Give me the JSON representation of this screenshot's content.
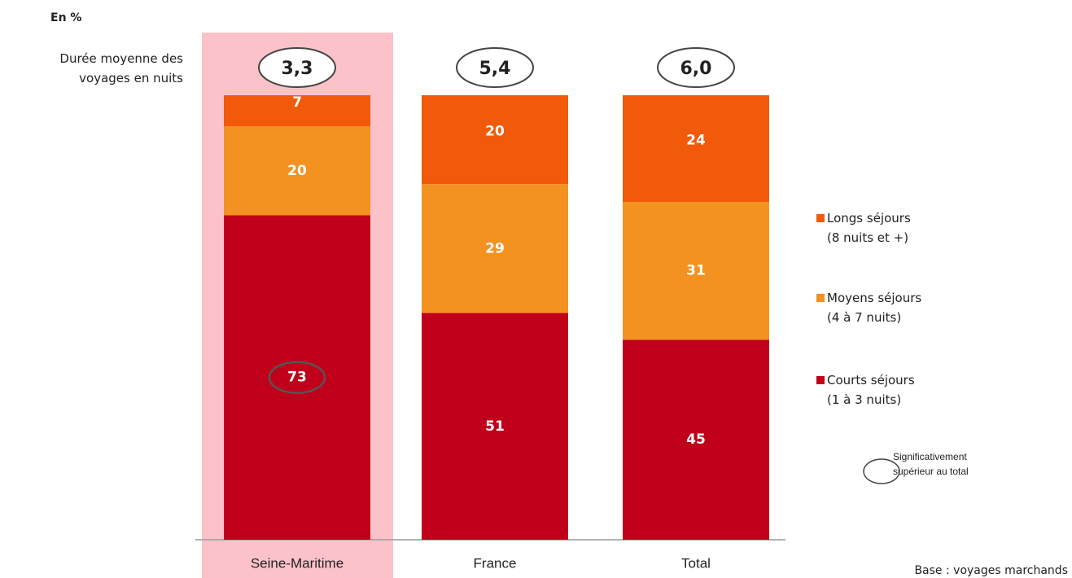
{
  "chart_data": {
    "type": "stacked_bar",
    "unit_label": "En %",
    "average_title": "Durée moyenne des\nvoyages en nuits",
    "categories": [
      "Seine-Maritime",
      "France",
      "Total"
    ],
    "highlighted": [
      true,
      false,
      false
    ],
    "averages": {
      "values": [
        3.3,
        5.4,
        6.0
      ],
      "value_labels": [
        "3,3",
        "5,4",
        "6,0"
      ]
    },
    "series": [
      {
        "name": "Courts séjours\n(1 à 3 nuits)",
        "color": "#c0001a",
        "values": [
          73,
          51,
          45
        ],
        "circled": [
          true,
          false,
          false
        ]
      },
      {
        "name": "Moyens séjours\n(4 à 7 nuits)",
        "color": "#f39220",
        "values": [
          20,
          29,
          31
        ],
        "circled": [
          false,
          false,
          false
        ]
      },
      {
        "name": "Longs séjours\n(8 nuits et +)",
        "color": "#f05a0a",
        "values": [
          7,
          20,
          24
        ],
        "circled": [
          false,
          false,
          false
        ]
      }
    ],
    "ylim": [
      0,
      100
    ],
    "note": "Significativement\nsupérieur au total",
    "source": "Base : voyages marchands"
  }
}
